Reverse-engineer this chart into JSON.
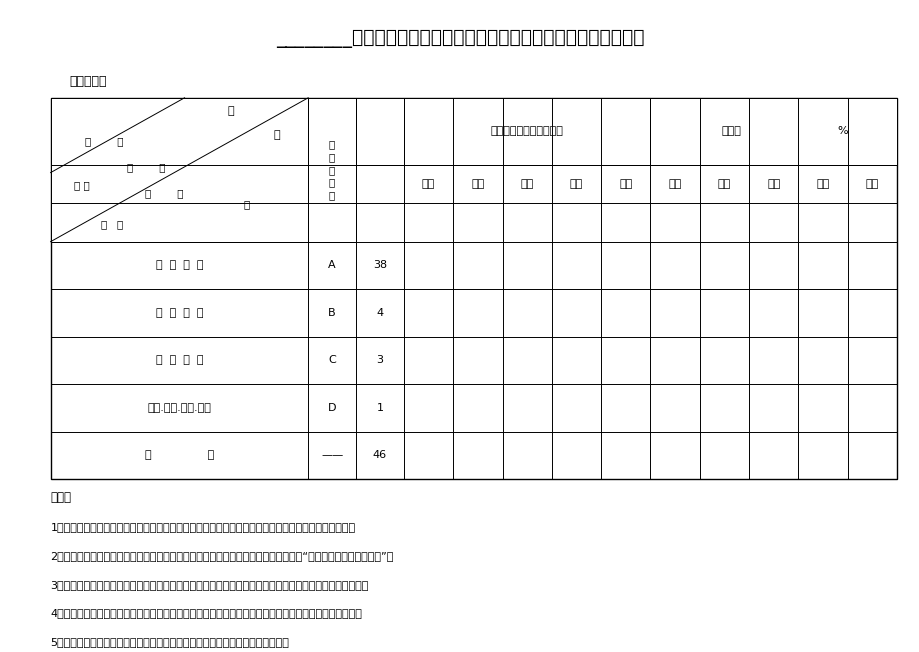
{
  "title": "________小学（盖章）科学实验活动开出登记统计表（三年级上册）",
  "teacher_label": "任课教师：",
  "bg_color": "#ffffff",
  "rows": [
    {
      "name": "分  组  实  验",
      "code": "A",
      "value": "38"
    },
    {
      "name": "演  示  实  验",
      "code": "B",
      "value": "4"
    },
    {
      "name": "参  观  考  察",
      "code": "C",
      "value": "3"
    },
    {
      "name": "种植.饲养.采集.制作",
      "code": "D",
      "value": "1"
    },
    {
      "name": "小                计",
      "code": "——",
      "value": "46"
    }
  ],
  "col_headers_row2": [
    "一班",
    "二班",
    "三班",
    "四班",
    "小计",
    "一班",
    "二班",
    "三班",
    "四班",
    "平均"
  ],
  "notes_title": "说明：",
  "notes": [
    "1、此表作为小学科学教师备课以及统计汇总用。超过四个班的年级请按此规律自行设计表格统计汇总。",
    "2、表中「要求」栏是根据科学课程标准、科学教材及教学实际确定。要求按教学进度“开全、开齐、开足、开好”。",
    "3、表中「实际开出数」栏应根据实际情况填写。其中种植、饲养根据条件可以学校、班级、科技小组进行。",
    "4、教师可根据教学需要，自行设计演示或分组实验，补充的实践活动应后续填写在登记表的空白表格中。",
    "5、本表一式两份，盖上学校公章后，一份留底，一份于学期末上交教科研中心。"
  ]
}
